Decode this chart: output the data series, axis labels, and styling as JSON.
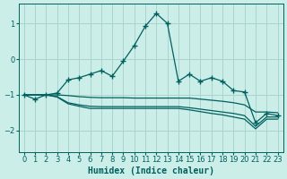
{
  "xlabel": "Humidex (Indice chaleur)",
  "bg_color": "#cceee8",
  "grid_color": "#aad4ce",
  "line_color": "#006060",
  "xlim": [
    -0.5,
    23.5
  ],
  "ylim": [
    -2.6,
    1.55
  ],
  "yticks": [
    -2,
    -1,
    0,
    1
  ],
  "xticks": [
    0,
    1,
    2,
    3,
    4,
    5,
    6,
    7,
    8,
    9,
    10,
    11,
    12,
    13,
    14,
    15,
    16,
    17,
    18,
    19,
    20,
    21,
    22,
    23
  ],
  "main_x": [
    0,
    1,
    2,
    3,
    4,
    5,
    6,
    7,
    8,
    9,
    10,
    11,
    12,
    13,
    14,
    15,
    16,
    17,
    18,
    19,
    20,
    21,
    22,
    23
  ],
  "main_y": [
    -1.0,
    -1.12,
    -1.0,
    -0.95,
    -0.58,
    -0.52,
    -0.42,
    -0.32,
    -0.48,
    -0.06,
    0.38,
    0.92,
    1.28,
    1.0,
    -0.62,
    -0.42,
    -0.62,
    -0.52,
    -0.62,
    -0.88,
    -0.92,
    -1.78,
    -1.52,
    -1.58
  ],
  "line1_x": [
    0,
    1,
    2,
    3,
    4,
    5,
    6,
    7,
    8,
    9,
    10,
    11,
    12,
    13,
    14,
    15,
    16,
    17,
    18,
    19,
    20,
    21,
    22,
    23
  ],
  "line1_y": [
    -1.0,
    -1.0,
    -1.0,
    -1.0,
    -1.02,
    -1.05,
    -1.07,
    -1.08,
    -1.08,
    -1.08,
    -1.09,
    -1.09,
    -1.09,
    -1.09,
    -1.09,
    -1.09,
    -1.12,
    -1.15,
    -1.18,
    -1.22,
    -1.28,
    -1.48,
    -1.48,
    -1.5
  ],
  "line2_x": [
    0,
    1,
    2,
    3,
    4,
    5,
    6,
    7,
    8,
    9,
    10,
    11,
    12,
    13,
    14,
    15,
    16,
    17,
    18,
    19,
    20,
    21,
    22,
    23
  ],
  "line2_y": [
    -1.0,
    -1.0,
    -1.0,
    -1.05,
    -1.22,
    -1.28,
    -1.32,
    -1.33,
    -1.33,
    -1.33,
    -1.33,
    -1.33,
    -1.33,
    -1.33,
    -1.33,
    -1.36,
    -1.4,
    -1.44,
    -1.48,
    -1.52,
    -1.58,
    -1.88,
    -1.62,
    -1.62
  ],
  "line3_x": [
    0,
    1,
    2,
    3,
    4,
    5,
    6,
    7,
    8,
    9,
    10,
    11,
    12,
    13,
    14,
    15,
    16,
    17,
    18,
    19,
    20,
    21,
    22,
    23
  ],
  "line3_y": [
    -1.0,
    -1.0,
    -1.0,
    -1.06,
    -1.25,
    -1.32,
    -1.38,
    -1.38,
    -1.38,
    -1.38,
    -1.38,
    -1.38,
    -1.38,
    -1.38,
    -1.38,
    -1.42,
    -1.47,
    -1.52,
    -1.56,
    -1.62,
    -1.68,
    -1.95,
    -1.68,
    -1.68
  ]
}
